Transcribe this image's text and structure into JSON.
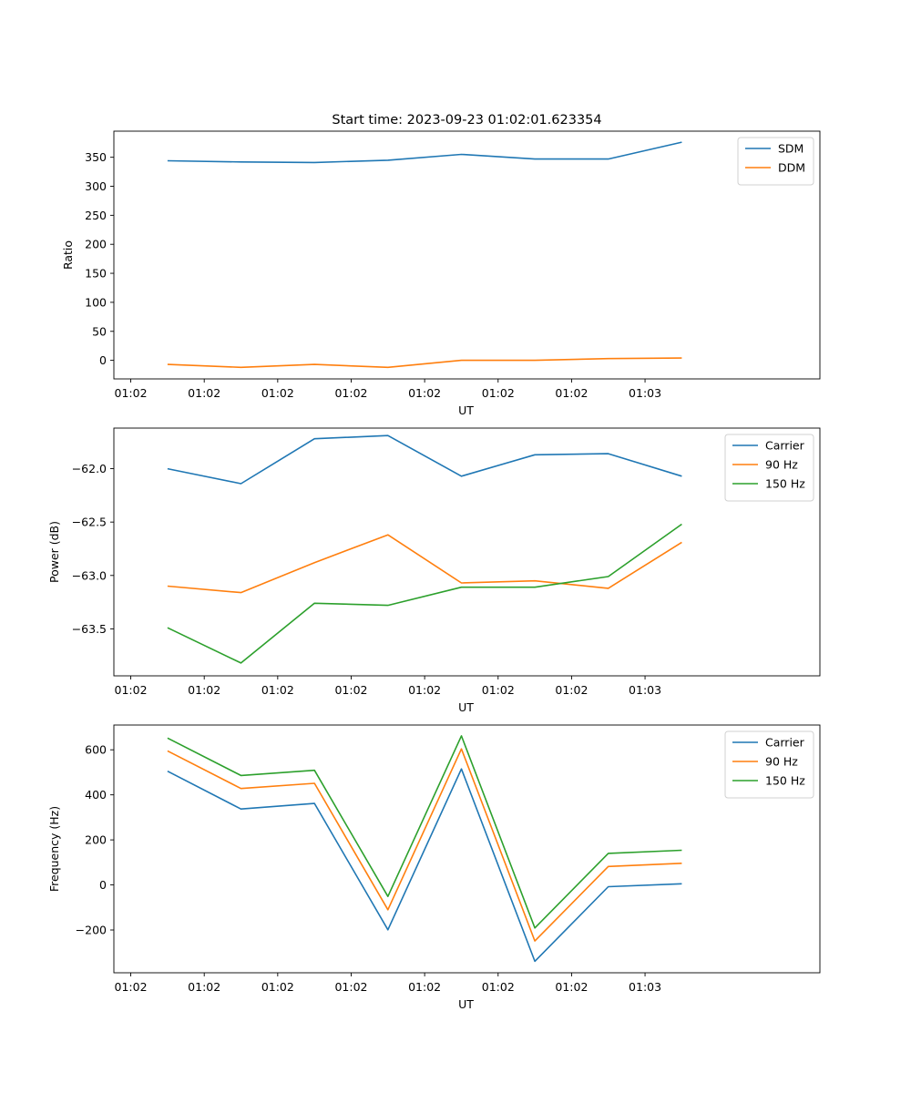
{
  "figure_title": "Start time: 2023-09-23 01:02:01.623354",
  "chart_data": [
    {
      "type": "line",
      "title": "Start time: 2023-09-23 01:02:01.623354",
      "xlabel": "UT",
      "ylabel": "Ratio",
      "x_tick_labels": [
        "01:02",
        "01:02",
        "01:02",
        "01:02",
        "01:02",
        "01:02",
        "01:02"
      ],
      "x_tick_label_last": "01:03",
      "xlim": [
        -0.23,
        9.38
      ],
      "x": [
        0.5,
        1.5,
        2.5,
        3.5,
        4.5,
        5.5,
        6.5,
        7.5
      ],
      "ylim": [
        -32,
        395
      ],
      "yticks": [
        0,
        50,
        100,
        150,
        200,
        250,
        300,
        350
      ],
      "ytick_labels": [
        "0",
        "50",
        "100",
        "150",
        "200",
        "250",
        "300",
        "350"
      ],
      "legend": "top-right",
      "series": [
        {
          "name": "SDM",
          "color": "#1f77b4",
          "values": [
            344,
            342,
            341,
            345,
            355,
            347,
            347,
            376
          ]
        },
        {
          "name": "DDM",
          "color": "#ff7f0e",
          "values": [
            -7,
            -12,
            -7,
            -12,
            0,
            0,
            3,
            4
          ]
        }
      ]
    },
    {
      "type": "line",
      "title": "",
      "xlabel": "UT",
      "ylabel": "Power (dB)",
      "x_tick_labels": [
        "01:02",
        "01:02",
        "01:02",
        "01:02",
        "01:02",
        "01:02",
        "01:02"
      ],
      "x_tick_label_last": "01:03",
      "xlim": [
        -0.23,
        9.38
      ],
      "x": [
        0.5,
        1.5,
        2.5,
        3.5,
        4.5,
        5.5,
        6.5,
        7.5
      ],
      "ylim": [
        -63.94,
        -61.62
      ],
      "yticks": [
        -63.5,
        -63.0,
        -62.5,
        -62.0
      ],
      "ytick_labels": [
        "−63.5",
        "−63.0",
        "−62.5",
        "−62.0"
      ],
      "legend": "top-right",
      "series": [
        {
          "name": "Carrier",
          "color": "#1f77b4",
          "values": [
            -62.0,
            -62.14,
            -61.72,
            -61.69,
            -62.07,
            -61.87,
            -61.86,
            -62.07
          ]
        },
        {
          "name": "90 Hz",
          "color": "#ff7f0e",
          "values": [
            -63.1,
            -63.16,
            -62.88,
            -62.62,
            -63.07,
            -63.05,
            -63.12,
            -62.69
          ]
        },
        {
          "name": "150 Hz",
          "color": "#2ca02c",
          "values": [
            -63.49,
            -63.82,
            -63.26,
            -63.28,
            -63.11,
            -63.11,
            -63.01,
            -62.52
          ]
        }
      ]
    },
    {
      "type": "line",
      "title": "",
      "xlabel": "UT",
      "ylabel": "Frequency (Hz)",
      "x_tick_labels": [
        "01:02",
        "01:02",
        "01:02",
        "01:02",
        "01:02",
        "01:02",
        "01:02"
      ],
      "x_tick_label_last": "01:03",
      "xlim": [
        -0.23,
        9.38
      ],
      "x": [
        0.5,
        1.5,
        2.5,
        3.5,
        4.5,
        5.5,
        6.5,
        7.5
      ],
      "ylim": [
        -390,
        710
      ],
      "yticks": [
        -200,
        0,
        200,
        400,
        600
      ],
      "ytick_labels": [
        "−200",
        "0",
        "200",
        "400",
        "600"
      ],
      "legend": "top-right",
      "series": [
        {
          "name": "Carrier",
          "color": "#1f77b4",
          "values": [
            505,
            337,
            362,
            -199,
            515,
            -339,
            -8,
            5
          ]
        },
        {
          "name": "90 Hz",
          "color": "#ff7f0e",
          "values": [
            595,
            428,
            451,
            -110,
            604,
            -249,
            82,
            96
          ]
        },
        {
          "name": "150 Hz",
          "color": "#2ca02c",
          "values": [
            652,
            486,
            509,
            -51,
            662,
            -191,
            140,
            154
          ]
        }
      ]
    }
  ]
}
